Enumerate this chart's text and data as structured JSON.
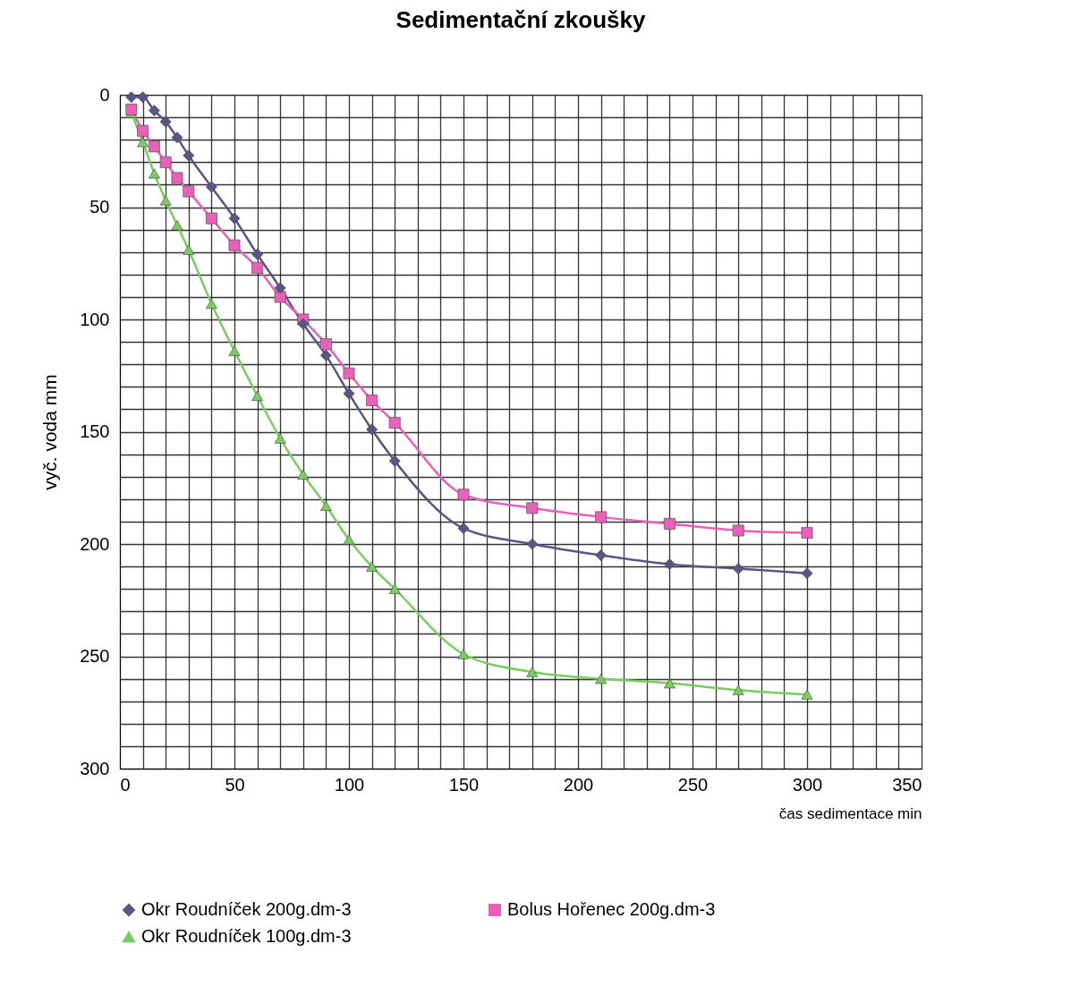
{
  "chart_data": {
    "type": "line",
    "title": "Sedimentační zkoušky",
    "xlabel": "čas sedimentace min",
    "ylabel": "vyč. voda mm",
    "x": [
      5,
      10,
      15,
      20,
      25,
      30,
      40,
      50,
      60,
      70,
      80,
      90,
      100,
      110,
      120,
      150,
      180,
      210,
      240,
      270,
      300
    ],
    "series": [
      {
        "name": "Okr Roudníček 200g.dm-3",
        "color": "#5b5585",
        "marker": "diamond",
        "values": [
          1,
          1,
          7,
          12,
          19,
          27,
          41,
          55,
          71,
          86,
          102,
          116,
          133,
          149,
          163,
          193,
          200,
          205,
          209,
          211,
          213
        ]
      },
      {
        "name": "Bolus Hořenec 200g.dm-3",
        "color": "#e860b8",
        "marker": "square",
        "values": [
          6.5,
          16,
          23,
          30,
          37,
          43,
          55,
          67,
          77,
          90,
          100,
          111,
          124,
          136,
          146,
          178,
          184,
          188,
          191,
          194,
          195
        ]
      },
      {
        "name": "Okr Roudníček 100g.dm-3",
        "color": "#7acc60",
        "marker": "triangle",
        "values": [
          8,
          21,
          35,
          47,
          58,
          69,
          93,
          114,
          134,
          153,
          169,
          183,
          198,
          210,
          220,
          249,
          257,
          260,
          262,
          265,
          267
        ]
      }
    ],
    "xlim": [
      0,
      350
    ],
    "ylim": [
      300,
      0
    ],
    "xticks": [
      0,
      {
        "value": 10,
        "label": null
      },
      {
        "value": 20,
        "label": null
      },
      {
        "value": 30,
        "label": null
      },
      {
        "value": 40,
        "label": null
      },
      50,
      {
        "value": 60,
        "label": null
      },
      {
        "value": 70,
        "label": null
      },
      {
        "value": 80,
        "label": null
      },
      {
        "value": 90,
        "label": null
      },
      100,
      {
        "value": 110,
        "label": null
      },
      {
        "value": 120,
        "label": null
      },
      {
        "value": 130,
        "label": null
      },
      {
        "value": 140,
        "label": null
      },
      150,
      {
        "value": 160,
        "label": null
      },
      {
        "value": 170,
        "label": null
      },
      {
        "value": 180,
        "label": null
      },
      {
        "value": 190,
        "label": null
      },
      200,
      {
        "value": 210,
        "label": null
      },
      {
        "value": 220,
        "label": null
      },
      {
        "value": 230,
        "label": null
      },
      {
        "value": 240,
        "label": null
      },
      250,
      {
        "value": 260,
        "label": null
      },
      {
        "value": 270,
        "label": null
      },
      {
        "value": 280,
        "label": null
      },
      {
        "value": 290,
        "label": null
      },
      300,
      {
        "value": 310,
        "label": null
      },
      {
        "value": 320,
        "label": null
      },
      {
        "value": 330,
        "label": null
      },
      {
        "value": 340,
        "label": null
      },
      350
    ],
    "yticks": [
      0,
      {
        "value": 10,
        "label": null
      },
      {
        "value": 20,
        "label": null
      },
      {
        "value": 30,
        "label": null
      },
      {
        "value": 40,
        "label": null
      },
      50,
      {
        "value": 60,
        "label": null
      },
      {
        "value": 70,
        "label": null
      },
      {
        "value": 80,
        "label": null
      },
      {
        "value": 90,
        "label": null
      },
      100,
      {
        "value": 110,
        "label": null
      },
      {
        "value": 120,
        "label": null
      },
      {
        "value": 130,
        "label": null
      },
      {
        "value": 140,
        "label": null
      },
      150,
      {
        "value": 160,
        "label": null
      },
      {
        "value": 170,
        "label": null
      },
      {
        "value": 180,
        "label": null
      },
      {
        "value": 190,
        "label": null
      },
      200,
      {
        "value": 210,
        "label": null
      },
      {
        "value": 220,
        "label": null
      },
      {
        "value": 230,
        "label": null
      },
      {
        "value": 240,
        "label": null
      },
      250,
      {
        "value": 260,
        "label": null
      },
      {
        "value": 270,
        "label": null
      },
      {
        "value": 280,
        "label": null
      },
      {
        "value": 290,
        "label": null
      },
      300
    ],
    "grid": true,
    "legend": "bottom",
    "line_style": "solid"
  }
}
